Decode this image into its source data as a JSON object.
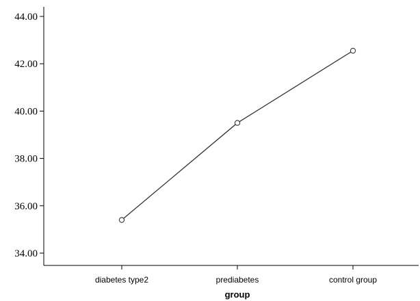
{
  "chart_data": {
    "type": "line",
    "categories": [
      "diabetes type2",
      "prediabetes",
      "control group"
    ],
    "series": [
      {
        "values": [
          35.4,
          39.5,
          42.55
        ],
        "color": "#333333",
        "marker": "open-circle"
      }
    ],
    "xlabel": "group",
    "ylabel": "",
    "ylim": [
      34,
      44
    ],
    "yticks": [
      "34.00",
      "36.00",
      "38.00",
      "40.00",
      "42.00",
      "44.00"
    ],
    "grid": false,
    "legend": "none"
  }
}
